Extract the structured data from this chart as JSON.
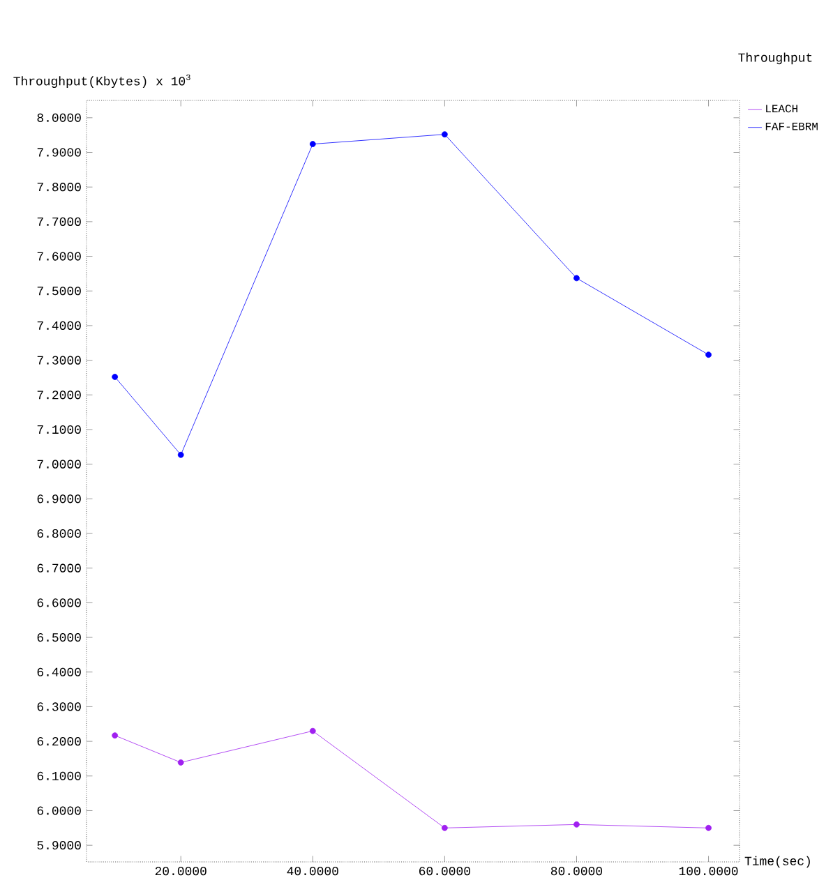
{
  "chart_data": {
    "type": "line",
    "title": "Throughput",
    "xlabel": "Time(sec)",
    "ylabel": "Throughput(Kbytes) x 10$^{3}$",
    "x": [
      10,
      20,
      40,
      60,
      80,
      100
    ],
    "series": [
      {
        "name": "LEACH",
        "color": "#a020f0",
        "values": [
          6.217,
          6.139,
          6.23,
          5.95,
          5.96,
          5.95
        ]
      },
      {
        "name": "FAF-EBRM",
        "color": "#0000ff",
        "values": [
          7.252,
          7.027,
          7.924,
          7.952,
          7.537,
          7.316
        ]
      }
    ],
    "xlim": [
      5.7,
      104.7
    ],
    "ylim": [
      5.852,
      8.05
    ],
    "xticks": [
      {
        "value": 20,
        "label": "20.0000"
      },
      {
        "value": 40,
        "label": "40.0000"
      },
      {
        "value": 60,
        "label": "60.0000"
      },
      {
        "value": 80,
        "label": "80.0000"
      },
      {
        "value": 100,
        "label": "100.0000"
      }
    ],
    "yticks": [
      {
        "value": 5.9,
        "label": "5.9000"
      },
      {
        "value": 6.0,
        "label": "6.0000"
      },
      {
        "value": 6.1,
        "label": "6.1000"
      },
      {
        "value": 6.2,
        "label": "6.2000"
      },
      {
        "value": 6.3,
        "label": "6.3000"
      },
      {
        "value": 6.4,
        "label": "6.4000"
      },
      {
        "value": 6.5,
        "label": "6.5000"
      },
      {
        "value": 6.6,
        "label": "6.6000"
      },
      {
        "value": 6.7,
        "label": "6.7000"
      },
      {
        "value": 6.8,
        "label": "6.8000"
      },
      {
        "value": 6.9,
        "label": "6.9000"
      },
      {
        "value": 7.0,
        "label": "7.0000"
      },
      {
        "value": 7.1,
        "label": "7.1000"
      },
      {
        "value": 7.2,
        "label": "7.2000"
      },
      {
        "value": 7.3,
        "label": "7.3000"
      },
      {
        "value": 7.4,
        "label": "7.4000"
      },
      {
        "value": 7.5,
        "label": "7.5000"
      },
      {
        "value": 7.6,
        "label": "7.6000"
      },
      {
        "value": 7.7,
        "label": "7.7000"
      },
      {
        "value": 7.8,
        "label": "7.8000"
      },
      {
        "value": 7.9,
        "label": "7.9000"
      },
      {
        "value": 8.0,
        "label": "8.0000"
      }
    ],
    "grid": false,
    "legend": "top right",
    "marker": "circle",
    "line_style": "solid"
  }
}
